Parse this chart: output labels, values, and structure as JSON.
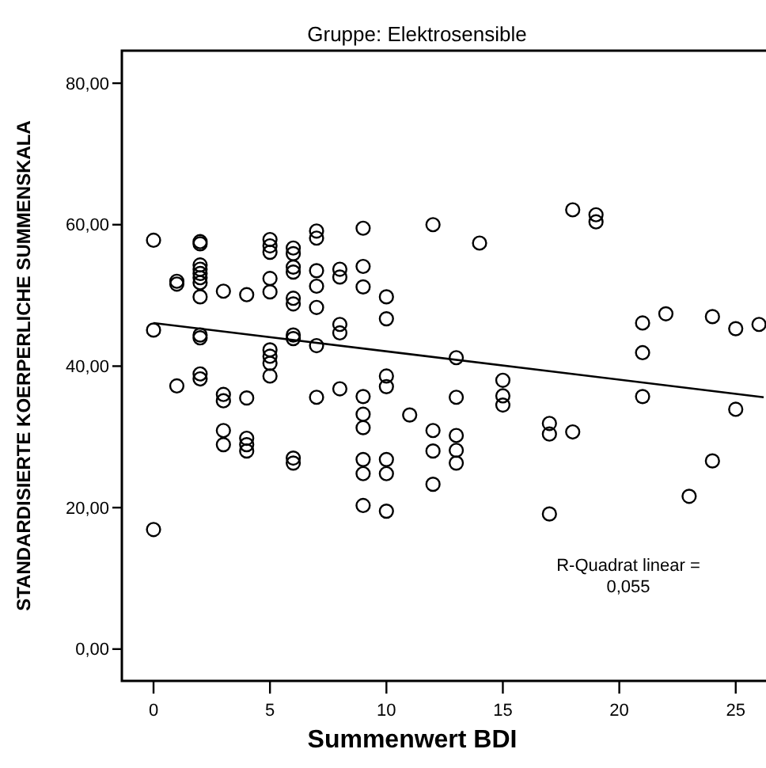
{
  "chart_data": {
    "type": "scatter",
    "title": "Gruppe: Elektrosensible",
    "xlabel": "Summenwert BDI",
    "ylabel": "STANDARDISIERTE KOERPERLICHE SUMMENSKALA",
    "xlim": [
      -1.36,
      26.3
    ],
    "ylim": [
      -4.5,
      84.6
    ],
    "xticks": [
      0,
      5,
      10,
      15,
      20,
      25
    ],
    "yticks": [
      {
        "value": 0,
        "label": "0,00"
      },
      {
        "value": 20,
        "label": "20,00"
      },
      {
        "value": 40,
        "label": "40,00"
      },
      {
        "value": 60,
        "label": "60,00"
      },
      {
        "value": 80,
        "label": "80,00"
      }
    ],
    "grid": false,
    "annotations": [
      "R-Quadrat linear =\n0,055"
    ],
    "series": [
      {
        "color": "#000000",
        "marker": "circle",
        "x": [
          0,
          0,
          0,
          1,
          1,
          1,
          2,
          2,
          2,
          2,
          2,
          2,
          2,
          2,
          2,
          2,
          2,
          2,
          3,
          3,
          3,
          3,
          3,
          4,
          4,
          4,
          4,
          4,
          5,
          5,
          5,
          5,
          5,
          5,
          5,
          5,
          5,
          6,
          6,
          6,
          6,
          6,
          6,
          6,
          6,
          6,
          6,
          7,
          7,
          7,
          7,
          7,
          7,
          7,
          8,
          8,
          8,
          8,
          8,
          9,
          9,
          9,
          9,
          9,
          9,
          9,
          9,
          9,
          10,
          10,
          10,
          10,
          10,
          10,
          10,
          11,
          12,
          12,
          12,
          12,
          13,
          13,
          13,
          13,
          13,
          14,
          15,
          15,
          15,
          17,
          17,
          17,
          18,
          18,
          19,
          19,
          21,
          21,
          21,
          22,
          23,
          24,
          24,
          25,
          25,
          26
        ],
        "values": [
          57.8,
          45.1,
          16.9,
          52.0,
          51.6,
          37.2,
          57.6,
          57.3,
          54.3,
          53.7,
          53.1,
          52.5,
          51.8,
          49.8,
          44.4,
          44.0,
          38.9,
          38.2,
          50.6,
          36.0,
          35.1,
          30.9,
          28.9,
          50.1,
          35.5,
          29.8,
          28.9,
          28.0,
          57.9,
          57.0,
          56.1,
          52.4,
          50.5,
          42.3,
          41.4,
          40.4,
          38.6,
          56.7,
          55.9,
          54.0,
          53.3,
          49.6,
          48.8,
          44.4,
          43.9,
          27.0,
          26.3,
          59.1,
          58.1,
          53.5,
          51.3,
          48.3,
          42.9,
          35.6,
          53.7,
          52.6,
          45.9,
          44.7,
          36.8,
          59.5,
          54.1,
          51.2,
          35.7,
          33.2,
          31.3,
          26.8,
          24.8,
          20.3,
          49.8,
          46.7,
          38.6,
          37.1,
          26.8,
          24.8,
          19.5,
          33.1,
          60.0,
          30.9,
          28.0,
          23.3,
          41.2,
          35.6,
          30.2,
          28.1,
          26.3,
          57.4,
          38.0,
          35.8,
          34.5,
          31.9,
          30.4,
          19.1,
          62.1,
          30.7,
          61.4,
          60.4,
          46.1,
          41.9,
          35.7,
          47.4,
          21.6,
          47.0,
          26.6,
          45.3,
          33.9,
          45.9
        ]
      },
      {
        "type": "line",
        "color": "#000000",
        "x": [
          0,
          26.2
        ],
        "values": [
          46.1,
          35.6
        ],
        "marker": "none",
        "line_style": "solid"
      }
    ]
  }
}
